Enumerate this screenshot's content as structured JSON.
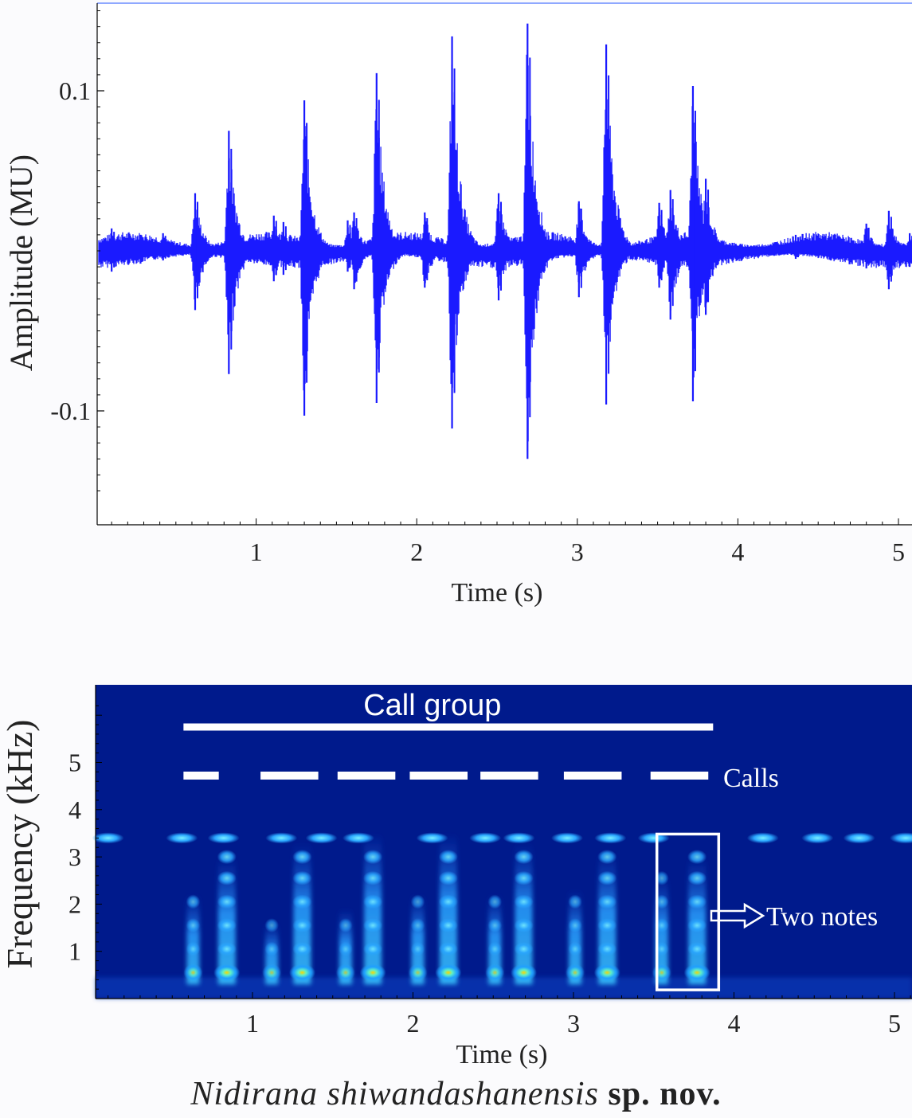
{
  "chart_data": [
    {
      "type": "line",
      "subtype": "waveform",
      "xlabel": "Time (s)",
      "ylabel": "Amplitude (MU)",
      "xlim": [
        0,
        5.1
      ],
      "ylim": [
        -0.16,
        0.155
      ],
      "x_ticks": [
        1,
        2,
        3,
        4,
        5
      ],
      "y_ticks": [
        0.1,
        -0.1
      ],
      "y_tick_labels": [
        "0.1",
        "-0.1"
      ],
      "series": [
        {
          "color": "#1a1aff",
          "pulses": [
            {
              "t": 0.1,
              "pos": 0.014,
              "neg": -0.013
            },
            {
              "t": 0.28,
              "pos": 0.01,
              "neg": -0.008
            },
            {
              "t": 0.42,
              "pos": 0.011,
              "neg": -0.006
            },
            {
              "t": 0.62,
              "pos": 0.036,
              "neg": -0.037
            },
            {
              "t": 0.83,
              "pos": 0.075,
              "neg": -0.077
            },
            {
              "t": 1.11,
              "pos": 0.022,
              "neg": -0.019
            },
            {
              "t": 1.17,
              "pos": 0.018,
              "neg": -0.015
            },
            {
              "t": 1.3,
              "pos": 0.094,
              "neg": -0.103
            },
            {
              "t": 1.57,
              "pos": 0.019,
              "neg": -0.013
            },
            {
              "t": 1.61,
              "pos": 0.024,
              "neg": -0.024
            },
            {
              "t": 1.75,
              "pos": 0.111,
              "neg": -0.095
            },
            {
              "t": 2.05,
              "pos": 0.024,
              "neg": -0.023
            },
            {
              "t": 2.22,
              "pos": 0.134,
              "neg": -0.111
            },
            {
              "t": 2.51,
              "pos": 0.036,
              "neg": -0.031
            },
            {
              "t": 2.69,
              "pos": 0.142,
              "neg": -0.13
            },
            {
              "t": 3.01,
              "pos": 0.031,
              "neg": -0.029
            },
            {
              "t": 3.18,
              "pos": 0.129,
              "neg": -0.096
            },
            {
              "t": 3.51,
              "pos": 0.03,
              "neg": -0.023
            },
            {
              "t": 3.58,
              "pos": 0.038,
              "neg": -0.043
            },
            {
              "t": 3.72,
              "pos": 0.103,
              "neg": -0.094
            },
            {
              "t": 3.8,
              "pos": 0.045,
              "neg": -0.04
            },
            {
              "t": 4.36,
              "pos": 0.01,
              "neg": -0.005
            },
            {
              "t": 4.58,
              "pos": 0.009,
              "neg": -0.006
            },
            {
              "t": 4.8,
              "pos": 0.017,
              "neg": -0.011
            },
            {
              "t": 4.94,
              "pos": 0.025,
              "neg": -0.024
            },
            {
              "t": 5.07,
              "pos": 0.011,
              "neg": -0.01
            }
          ]
        }
      ]
    },
    {
      "type": "heatmap",
      "subtype": "spectrogram",
      "xlabel": "Time (s)",
      "ylabel": "Frequency (kHz)",
      "xlim": [
        0,
        5.1
      ],
      "ylim": [
        0,
        6.5
      ],
      "x_ticks": [
        1,
        2,
        3,
        4,
        5
      ],
      "y_ticks": [
        1,
        2,
        3,
        4,
        5
      ],
      "background_color": "#001a8c",
      "annotations": {
        "call_group": {
          "label": "Call group",
          "t_start": 0.57,
          "t_end": 3.87
        },
        "calls_label": "Calls",
        "calls": [
          {
            "t_start": 0.57,
            "t_end": 0.79
          },
          {
            "t_start": 1.05,
            "t_end": 1.41
          },
          {
            "t_start": 1.53,
            "t_end": 1.89
          },
          {
            "t_start": 1.98,
            "t_end": 2.34
          },
          {
            "t_start": 2.42,
            "t_end": 2.78
          },
          {
            "t_start": 2.94,
            "t_end": 3.3
          },
          {
            "t_start": 3.48,
            "t_end": 3.84
          }
        ],
        "highlight_box": {
          "t_start": 3.48,
          "t_end": 3.87,
          "f_start": 0.2,
          "f_end": 3.5
        },
        "highlight_label": "Two notes"
      },
      "notes": [
        {
          "t": 0.63,
          "top": 2.2,
          "strength": 0.8
        },
        {
          "t": 0.84,
          "top": 3.0,
          "strength": 1.0
        },
        {
          "t": 1.12,
          "top": 1.6,
          "strength": 0.7
        },
        {
          "t": 1.31,
          "top": 3.3,
          "strength": 1.0
        },
        {
          "t": 1.58,
          "top": 1.9,
          "strength": 0.7
        },
        {
          "t": 1.75,
          "top": 3.5,
          "strength": 1.0
        },
        {
          "t": 2.03,
          "top": 2.2,
          "strength": 0.7
        },
        {
          "t": 2.22,
          "top": 3.5,
          "strength": 1.0
        },
        {
          "t": 2.51,
          "top": 2.2,
          "strength": 0.75
        },
        {
          "t": 2.69,
          "top": 3.3,
          "strength": 1.0
        },
        {
          "t": 3.01,
          "top": 2.3,
          "strength": 0.75
        },
        {
          "t": 3.21,
          "top": 3.1,
          "strength": 0.95
        },
        {
          "t": 3.55,
          "top": 2.6,
          "strength": 0.75
        },
        {
          "t": 3.77,
          "top": 3.0,
          "strength": 0.95
        }
      ],
      "noise_band": {
        "freq": 3.4,
        "spots": [
          0.1,
          0.56,
          0.82,
          1.18,
          1.43,
          1.66,
          2.12,
          2.45,
          2.66,
          2.96,
          3.23,
          3.5,
          4.18,
          4.52,
          4.78,
          5.07
        ]
      }
    }
  ],
  "caption": {
    "species": "Nidirana shiwandashanensis",
    "status": "sp. nov."
  }
}
